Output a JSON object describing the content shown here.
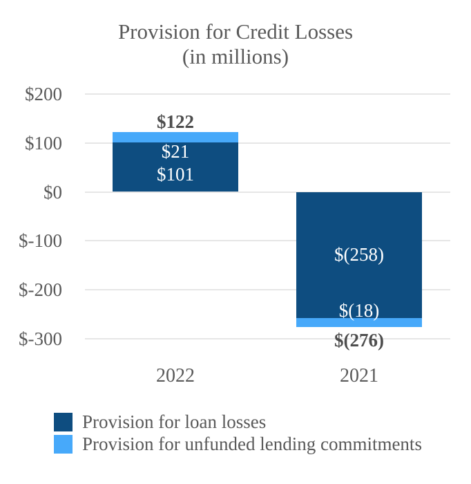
{
  "chart_data": {
    "type": "bar",
    "stacked": true,
    "title": "Provision for Credit Losses",
    "subtitle": "(in millions)",
    "categories": [
      "2022",
      "2021"
    ],
    "series": [
      {
        "name": "Provision for loan losses",
        "color": "#0e4d80",
        "values": [
          101,
          -258
        ],
        "labels": [
          "$101",
          "$(258)"
        ]
      },
      {
        "name": "Provision for unfunded lending commitments",
        "color": "#47a9fa",
        "values": [
          21,
          -18
        ],
        "labels": [
          "$21",
          "$(18)"
        ]
      }
    ],
    "totals": {
      "values": [
        122,
        -276
      ],
      "labels": [
        "$122",
        "$(276)"
      ]
    },
    "y_axis": {
      "ticks": [
        200,
        100,
        0,
        -100,
        -200,
        -300
      ],
      "tick_labels": [
        "$200",
        "$100",
        "$0",
        "$-100",
        "$-200",
        "$-300"
      ],
      "range": [
        -300,
        200
      ]
    },
    "grid": true,
    "legend_position": "bottom-left",
    "colors": {
      "text_gray": "#595959",
      "total_label": "#4d4d4d",
      "gridline": "#e6e6e6",
      "bar_label_text": "#ffffff",
      "background": "#ffffff"
    }
  }
}
